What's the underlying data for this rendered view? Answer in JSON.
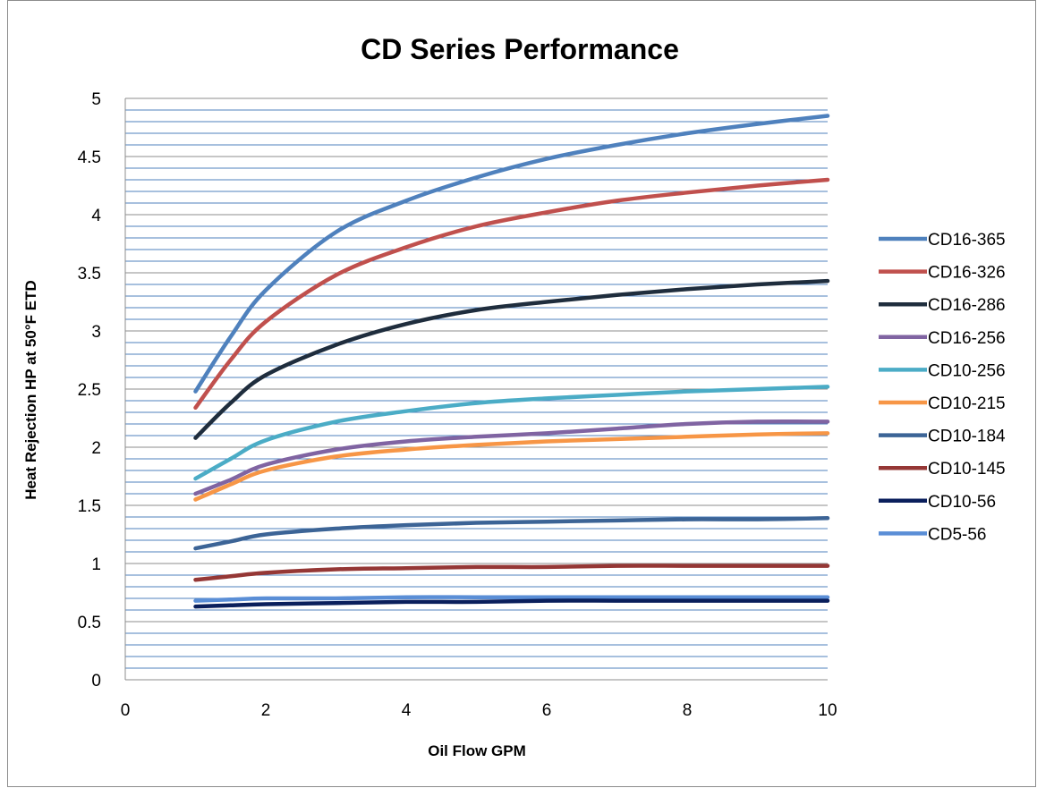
{
  "chart_data": {
    "type": "line",
    "title": "CD Series Performance",
    "xlabel": "Oil Flow GPM",
    "ylabel": "Heat Rejection HP at 50°F ETD",
    "xlim": [
      0,
      10
    ],
    "ylim": [
      0,
      5
    ],
    "x_ticks": [
      "0",
      "2",
      "4",
      "6",
      "8",
      "10"
    ],
    "y_ticks": [
      "0",
      "0.5",
      "1",
      "1.5",
      "2",
      "2.5",
      "3",
      "3.5",
      "4",
      "4.5",
      "5"
    ],
    "grid": true,
    "legend_position": "right",
    "x": [
      1,
      1.5,
      2,
      3,
      4,
      5,
      6,
      7,
      8,
      9,
      10
    ],
    "series": [
      {
        "name": "CD16-365",
        "color": "#4f81bd",
        "values": [
          2.48,
          2.95,
          3.35,
          3.85,
          4.12,
          4.32,
          4.48,
          4.6,
          4.7,
          4.78,
          4.85
        ]
      },
      {
        "name": "CD16-326",
        "color": "#c0504d",
        "values": [
          2.34,
          2.75,
          3.08,
          3.48,
          3.72,
          3.9,
          4.02,
          4.12,
          4.19,
          4.25,
          4.3
        ]
      },
      {
        "name": "CD16-286",
        "color": "#1f2d3d",
        "values": [
          2.08,
          2.38,
          2.62,
          2.88,
          3.06,
          3.18,
          3.25,
          3.31,
          3.36,
          3.4,
          3.43
        ]
      },
      {
        "name": "CD16-256",
        "color": "#8064a2",
        "values": [
          1.6,
          1.72,
          1.85,
          1.98,
          2.05,
          2.09,
          2.12,
          2.16,
          2.2,
          2.22,
          2.22
        ]
      },
      {
        "name": "CD10-256",
        "color": "#4bacc6",
        "values": [
          1.73,
          1.9,
          2.06,
          2.22,
          2.31,
          2.38,
          2.42,
          2.45,
          2.48,
          2.5,
          2.52
        ]
      },
      {
        "name": "CD10-215",
        "color": "#f79646",
        "values": [
          1.55,
          1.68,
          1.8,
          1.92,
          1.98,
          2.02,
          2.05,
          2.07,
          2.09,
          2.11,
          2.12
        ]
      },
      {
        "name": "CD10-184",
        "color": "#3c6496",
        "values": [
          1.13,
          1.19,
          1.25,
          1.3,
          1.33,
          1.35,
          1.36,
          1.37,
          1.38,
          1.38,
          1.39
        ]
      },
      {
        "name": "CD10-145",
        "color": "#953735",
        "values": [
          0.86,
          0.89,
          0.92,
          0.95,
          0.96,
          0.97,
          0.97,
          0.98,
          0.98,
          0.98,
          0.98
        ]
      },
      {
        "name": "CD10-56",
        "color": "#0a1f5c",
        "values": [
          0.63,
          0.64,
          0.65,
          0.66,
          0.67,
          0.67,
          0.68,
          0.68,
          0.68,
          0.68,
          0.68
        ]
      },
      {
        "name": "CD5-56",
        "color": "#5a8ed6",
        "values": [
          0.68,
          0.69,
          0.7,
          0.7,
          0.71,
          0.71,
          0.71,
          0.71,
          0.71,
          0.71,
          0.71
        ]
      }
    ]
  }
}
